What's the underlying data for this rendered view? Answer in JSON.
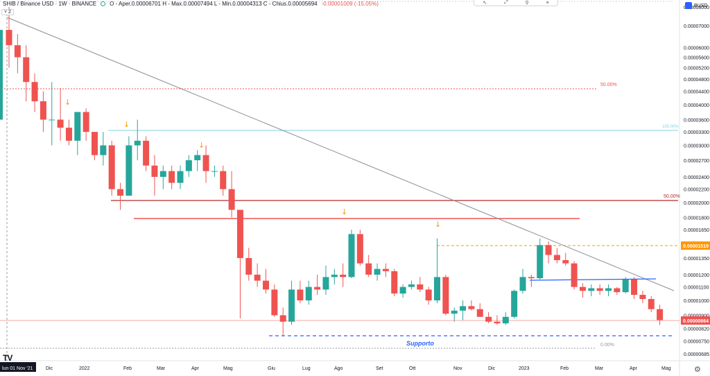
{
  "header": {
    "symbol": "SHIB / Binance USD · 1W · BINANCE",
    "ohlc": "O - Aper.0.00006701  H - Max.0.00007494  L - Min.0.00004313  C - Chius.0.00005694",
    "change": "-0.00001009 (-15.05%)",
    "collapse_label": "˅ 2"
  },
  "currency": {
    "label": "BUSD"
  },
  "toolbar": {
    "icons": [
      "cursor-icon",
      "measure-icon",
      "indicator-icon",
      "menu-icon"
    ]
  },
  "logo": {
    "text": "TV"
  },
  "colors": {
    "up": "#26a69a",
    "down": "#ef5350",
    "fib": "#ef5350",
    "cyan": "#7fd6d8",
    "blue": "#2962ff",
    "orange": "#ff9800",
    "trend": "#787b86"
  },
  "chart_data": {
    "type": "candlestick",
    "y_scale": "log",
    "y_ticks": [
      "0.00008000",
      "0.00007000",
      "0.00006000",
      "0.00005600",
      "0.00005200",
      "0.00004800",
      "0.00004400",
      "0.00004000",
      "0.00003600",
      "0.00003300",
      "0.00003000",
      "0.00002700",
      "0.00002400",
      "0.00002200",
      "0.00002000",
      "0.00001800",
      "0.00001650",
      "0.00001500",
      "0.00001350",
      "0.00001200",
      "0.00001100",
      "0.00001000",
      "0.00000900",
      "0.00000820",
      "0.00000750",
      "0.00000685"
    ],
    "x_ticks": [
      "lun 01 Nov '21",
      "Dic",
      "2022",
      "Feb",
      "Mar",
      "Apr",
      "Mag",
      "Giu",
      "Lug",
      "Ago",
      "Set",
      "Ott",
      "Nov",
      "Dic",
      "2023",
      "Feb",
      "Mar",
      "Apr",
      "Mag"
    ],
    "candles": [
      {
        "o": 6.8e-05,
        "h": 8e-05,
        "l": 5.2e-05,
        "c": 6.1e-05
      },
      {
        "o": 6.1e-05,
        "h": 6.6e-05,
        "l": 5e-05,
        "c": 5.6e-05
      },
      {
        "o": 5.6e-05,
        "h": 6.1e-05,
        "l": 4.1e-05,
        "c": 4.7e-05
      },
      {
        "o": 4.7e-05,
        "h": 5e-05,
        "l": 3.8e-05,
        "c": 4.1e-05
      },
      {
        "o": 4.1e-05,
        "h": 4.4e-05,
        "l": 3.3e-05,
        "c": 3.6e-05
      },
      {
        "o": 3.6e-05,
        "h": 4.7e-05,
        "l": 3e-05,
        "c": 3.6e-05
      },
      {
        "o": 3.6e-05,
        "h": 4.5e-05,
        "l": 3.1e-05,
        "c": 3.4e-05
      },
      {
        "o": 3.4e-05,
        "h": 3.6e-05,
        "l": 3e-05,
        "c": 3.1e-05
      },
      {
        "o": 3.1e-05,
        "h": 3.8e-05,
        "l": 2.8e-05,
        "c": 3.8e-05
      },
      {
        "o": 3.8e-05,
        "h": 3.9e-05,
        "l": 3.1e-05,
        "c": 3.3e-05
      },
      {
        "o": 3.3e-05,
        "h": 3.3e-05,
        "l": 2.7e-05,
        "c": 2.8e-05
      },
      {
        "o": 2.8e-05,
        "h": 3.3e-05,
        "l": 2.6e-05,
        "c": 3e-05
      },
      {
        "o": 3e-05,
        "h": 3.1e-05,
        "l": 2.1e-05,
        "c": 2.2e-05
      },
      {
        "o": 2.2e-05,
        "h": 2.3e-05,
        "l": 1.9e-05,
        "c": 2.1e-05
      },
      {
        "o": 2.1e-05,
        "h": 3.2e-05,
        "l": 2.1e-05,
        "c": 3e-05
      },
      {
        "o": 3e-05,
        "h": 3.6e-05,
        "l": 2.7e-05,
        "c": 3.1e-05
      },
      {
        "o": 3.1e-05,
        "h": 3.2e-05,
        "l": 2.5e-05,
        "c": 2.6e-05
      },
      {
        "o": 2.6e-05,
        "h": 2.8e-05,
        "l": 2.1e-05,
        "c": 2.4e-05
      },
      {
        "o": 2.4e-05,
        "h": 2.6e-05,
        "l": 2.2e-05,
        "c": 2.5e-05
      },
      {
        "o": 2.5e-05,
        "h": 2.6e-05,
        "l": 2.2e-05,
        "c": 2.3e-05
      },
      {
        "o": 2.3e-05,
        "h": 2.6e-05,
        "l": 2.2e-05,
        "c": 2.5e-05
      },
      {
        "o": 2.5e-05,
        "h": 2.8e-05,
        "l": 2.4e-05,
        "c": 2.7e-05
      },
      {
        "o": 2.7e-05,
        "h": 2.9e-05,
        "l": 2.5e-05,
        "c": 2.8e-05
      },
      {
        "o": 2.8e-05,
        "h": 3e-05,
        "l": 2.3e-05,
        "c": 2.5e-05
      },
      {
        "o": 2.5e-05,
        "h": 2.6e-05,
        "l": 2.4e-05,
        "c": 2.5e-05
      },
      {
        "o": 2.5e-05,
        "h": 2.6e-05,
        "l": 2.1e-05,
        "c": 2.2e-05
      },
      {
        "o": 2.2e-05,
        "h": 2.5e-05,
        "l": 1.8e-05,
        "c": 1.9e-05
      },
      {
        "o": 1.9e-05,
        "h": 1.9e-05,
        "l": 8.8e-06,
        "c": 1.35e-05
      },
      {
        "o": 1.35e-05,
        "h": 1.45e-05,
        "l": 1.15e-05,
        "c": 1.2e-05
      },
      {
        "o": 1.2e-05,
        "h": 1.3e-05,
        "l": 1.1e-05,
        "c": 1.15e-05
      },
      {
        "o": 1.15e-05,
        "h": 1.25e-05,
        "l": 1.05e-05,
        "c": 1.08e-05
      },
      {
        "o": 1.08e-05,
        "h": 1.12e-05,
        "l": 8.9e-06,
        "c": 9e-06
      },
      {
        "o": 9e-06,
        "h": 9.5e-06,
        "l": 7.8e-06,
        "c": 8.6e-06
      },
      {
        "o": 8.6e-06,
        "h": 1.15e-05,
        "l": 8.4e-06,
        "c": 1.08e-05
      },
      {
        "o": 1.08e-05,
        "h": 1.15e-05,
        "l": 9.8e-06,
        "c": 1e-05
      },
      {
        "o": 1e-05,
        "h": 1.15e-05,
        "l": 9.7e-06,
        "c": 1.1e-05
      },
      {
        "o": 1.1e-05,
        "h": 1.2e-05,
        "l": 1.04e-05,
        "c": 1.08e-05
      },
      {
        "o": 1.08e-05,
        "h": 1.28e-05,
        "l": 1.04e-05,
        "c": 1.18e-05
      },
      {
        "o": 1.18e-05,
        "h": 1.25e-05,
        "l": 1.12e-05,
        "c": 1.2e-05
      },
      {
        "o": 1.2e-05,
        "h": 1.3e-05,
        "l": 1.1e-05,
        "c": 1.18e-05
      },
      {
        "o": 1.18e-05,
        "h": 1.65e-05,
        "l": 1.17e-05,
        "c": 1.6e-05
      },
      {
        "o": 1.6e-05,
        "h": 1.65e-05,
        "l": 1.28e-05,
        "c": 1.3e-05
      },
      {
        "o": 1.3e-05,
        "h": 1.38e-05,
        "l": 1.18e-05,
        "c": 1.2e-05
      },
      {
        "o": 1.2e-05,
        "h": 1.3e-05,
        "l": 1.15e-05,
        "c": 1.25e-05
      },
      {
        "o": 1.25e-05,
        "h": 1.3e-05,
        "l": 1.18e-05,
        "c": 1.23e-05
      },
      {
        "o": 1.23e-05,
        "h": 1.25e-05,
        "l": 1.03e-05,
        "c": 1.05e-05
      },
      {
        "o": 1.05e-05,
        "h": 1.12e-05,
        "l": 1.02e-05,
        "c": 1.1e-05
      },
      {
        "o": 1.1e-05,
        "h": 1.15e-05,
        "l": 1.08e-05,
        "c": 1.12e-05
      },
      {
        "o": 1.12e-05,
        "h": 1.18e-05,
        "l": 1.06e-05,
        "c": 1.08e-05
      },
      {
        "o": 1.08e-05,
        "h": 1.1e-05,
        "l": 9.7e-06,
        "c": 1e-05
      },
      {
        "o": 1e-05,
        "h": 1.55e-05,
        "l": 9.8e-06,
        "c": 1.18e-05
      },
      {
        "o": 1.18e-05,
        "h": 1.2e-05,
        "l": 9e-06,
        "c": 9.1e-06
      },
      {
        "o": 9.1e-06,
        "h": 9.5e-06,
        "l": 8.6e-06,
        "c": 9.3e-06
      },
      {
        "o": 9.3e-06,
        "h": 1e-05,
        "l": 8.7e-06,
        "c": 9.6e-06
      },
      {
        "o": 9.6e-06,
        "h": 1e-05,
        "l": 9.3e-06,
        "c": 9.4e-06
      },
      {
        "o": 9.4e-06,
        "h": 9.8e-06,
        "l": 8.9e-06,
        "c": 8.9e-06
      },
      {
        "o": 8.9e-06,
        "h": 9.2e-06,
        "l": 8.5e-06,
        "c": 8.6e-06
      },
      {
        "o": 8.6e-06,
        "h": 9e-06,
        "l": 8.4e-06,
        "c": 8.5e-06
      },
      {
        "o": 8.5e-06,
        "h": 9.2e-06,
        "l": 8.4e-06,
        "c": 8.9e-06
      },
      {
        "o": 8.9e-06,
        "h": 1.08e-05,
        "l": 8.8e-06,
        "c": 1.07e-05
      },
      {
        "o": 1.07e-05,
        "h": 1.25e-05,
        "l": 1.05e-05,
        "c": 1.18e-05
      },
      {
        "o": 1.18e-05,
        "h": 1.2e-05,
        "l": 1.1e-05,
        "c": 1.17e-05
      },
      {
        "o": 1.17e-05,
        "h": 1.55e-05,
        "l": 1.16e-05,
        "c": 1.48e-05
      },
      {
        "o": 1.48e-05,
        "h": 1.52e-05,
        "l": 1.3e-05,
        "c": 1.38e-05
      },
      {
        "o": 1.38e-05,
        "h": 1.45e-05,
        "l": 1.3e-05,
        "c": 1.33e-05
      },
      {
        "o": 1.33e-05,
        "h": 1.4e-05,
        "l": 1.28e-05,
        "c": 1.3e-05
      },
      {
        "o": 1.3e-05,
        "h": 1.32e-05,
        "l": 1.08e-05,
        "c": 1.1e-05
      },
      {
        "o": 1.1e-05,
        "h": 1.13e-05,
        "l": 1.02e-05,
        "c": 1.07e-05
      },
      {
        "o": 1.07e-05,
        "h": 1.12e-05,
        "l": 1.03e-05,
        "c": 1.09e-05
      },
      {
        "o": 1.09e-05,
        "h": 1.12e-05,
        "l": 1.04e-05,
        "c": 1.07e-05
      },
      {
        "o": 1.07e-05,
        "h": 1.12e-05,
        "l": 1.03e-05,
        "c": 1.09e-05
      },
      {
        "o": 1.09e-05,
        "h": 1.1e-05,
        "l": 1.04e-05,
        "c": 1.06e-05
      },
      {
        "o": 1.06e-05,
        "h": 1.18e-05,
        "l": 1.05e-05,
        "c": 1.16e-05
      },
      {
        "o": 1.16e-05,
        "h": 1.18e-05,
        "l": 1.01e-05,
        "c": 1.04e-05
      },
      {
        "o": 1.04e-05,
        "h": 1.07e-05,
        "l": 9.8e-06,
        "c": 1.01e-05
      },
      {
        "o": 1.01e-05,
        "h": 1.03e-05,
        "l": 9.2e-06,
        "c": 9.4e-06
      },
      {
        "o": 9.4e-06,
        "h": 9.7e-06,
        "l": 8.4e-06,
        "c": 8.7e-06
      }
    ],
    "annotations": {
      "fib_labels": [
        "50.00%",
        "50.00%",
        "0.00%"
      ],
      "price_labels": [
        {
          "text": "0.00001519",
          "color": "#ff9800"
        },
        {
          "text": "0.00000864",
          "color": "#ef5350"
        }
      ],
      "cyan_label": "100.00%",
      "support_label": "Supporto"
    }
  }
}
